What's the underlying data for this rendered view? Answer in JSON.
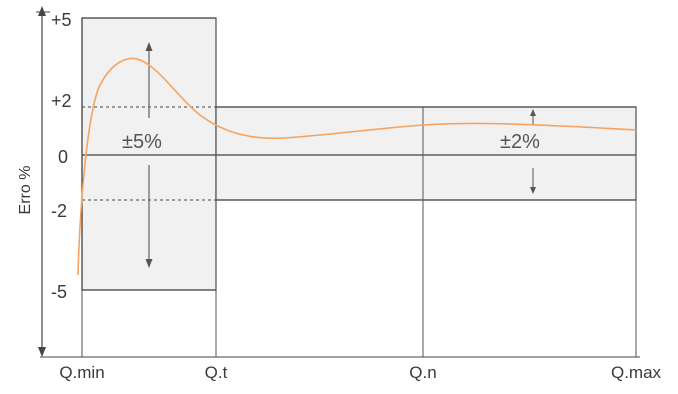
{
  "y_axis": {
    "label": "Erro %",
    "ticks": [
      "+5",
      "+2",
      "0",
      "-2",
      "-5"
    ]
  },
  "x_axis": {
    "ticks": [
      "Q.min",
      "Q.t",
      "Q.n",
      "Q.max"
    ]
  },
  "zones": {
    "low_flow_tolerance": "±5%",
    "high_flow_tolerance": "±2%"
  },
  "colors": {
    "curve": "#f4a460",
    "band_fill": "#f1f1f1",
    "line": "#333333"
  }
}
